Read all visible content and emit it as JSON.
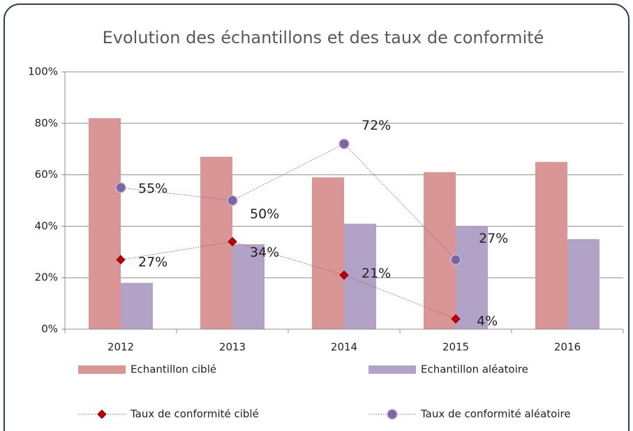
{
  "chart_data": {
    "type": "bar_line",
    "title": "Evolution des échantillons et des taux de conformité",
    "categories": [
      "2012",
      "2013",
      "2014",
      "2015",
      "2016"
    ],
    "ylim": [
      0,
      100
    ],
    "yticks": [
      {
        "value": 0,
        "label": "0%"
      },
      {
        "value": 20,
        "label": "20%"
      },
      {
        "value": 40,
        "label": "40%"
      },
      {
        "value": 60,
        "label": "60%"
      },
      {
        "value": 80,
        "label": "80%"
      },
      {
        "value": 100,
        "label": "100%"
      }
    ],
    "grid": true,
    "series": [
      {
        "name": "Echantillon ciblé",
        "kind": "bar",
        "color": "#d99694",
        "values": [
          82,
          67,
          59,
          61,
          65
        ]
      },
      {
        "name": "Echantillon aléatoire",
        "kind": "bar",
        "color": "#b3a2c7",
        "values": [
          18,
          33,
          41,
          40,
          35
        ]
      },
      {
        "name": "Taux de conformité ciblé",
        "kind": "line",
        "color": "#c0504d",
        "values": [
          27,
          34,
          21,
          4,
          null
        ],
        "value_labels": [
          "27%",
          "34%",
          "21%",
          "4%",
          null
        ]
      },
      {
        "name": "Taux de conformité aléatoire",
        "kind": "line",
        "color": "#8064a2",
        "values": [
          55,
          50,
          72,
          27,
          null
        ],
        "value_labels": [
          "55%",
          "50%",
          "72%",
          "27%",
          null
        ]
      }
    ]
  }
}
